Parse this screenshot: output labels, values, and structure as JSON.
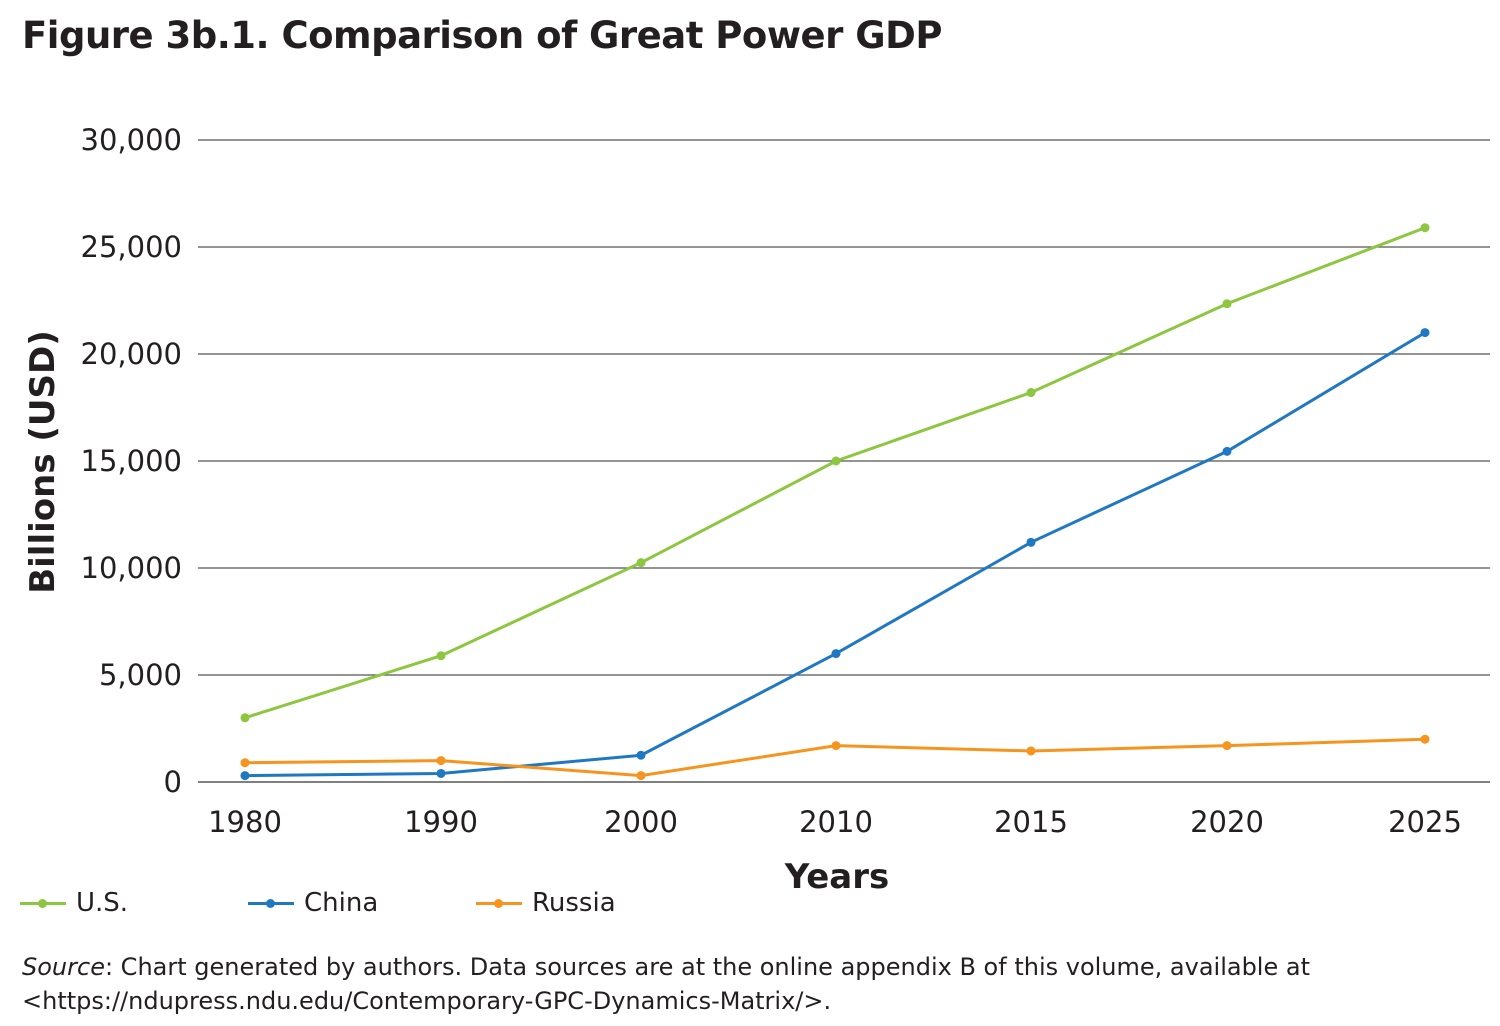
{
  "chart_data": {
    "type": "line",
    "title": "Figure 3b.1. Comparison of Great Power GDP",
    "xlabel": "Years",
    "ylabel": "Billions (USD)",
    "categories": [
      "1980",
      "1990",
      "2000",
      "2010",
      "2015",
      "2020",
      "2025"
    ],
    "ylim": [
      0,
      30000
    ],
    "yticks": [
      "0",
      "5,000",
      "10,000",
      "15,000",
      "20,000",
      "25,000",
      "30,000"
    ],
    "grid": true,
    "legend_position": "bottom-left",
    "series": [
      {
        "name": "U.S.",
        "color": "#8dc63f",
        "values": [
          3000,
          5900,
          10250,
          15000,
          18200,
          22350,
          25900
        ]
      },
      {
        "name": "China",
        "color": "#1f78c1",
        "values": [
          300,
          400,
          1250,
          6000,
          11200,
          15450,
          21000
        ]
      },
      {
        "name": "Russia",
        "color": "#f7941d",
        "values": [
          900,
          1000,
          300,
          1700,
          1450,
          1700,
          2000
        ]
      }
    ]
  },
  "source": {
    "label": "Source",
    "text": ": Chart generated by authors. Data sources are at the online appendix B of this volume, available at <https://ndupress.ndu.edu/Contemporary-GPC-Dynamics-Matrix/>."
  }
}
